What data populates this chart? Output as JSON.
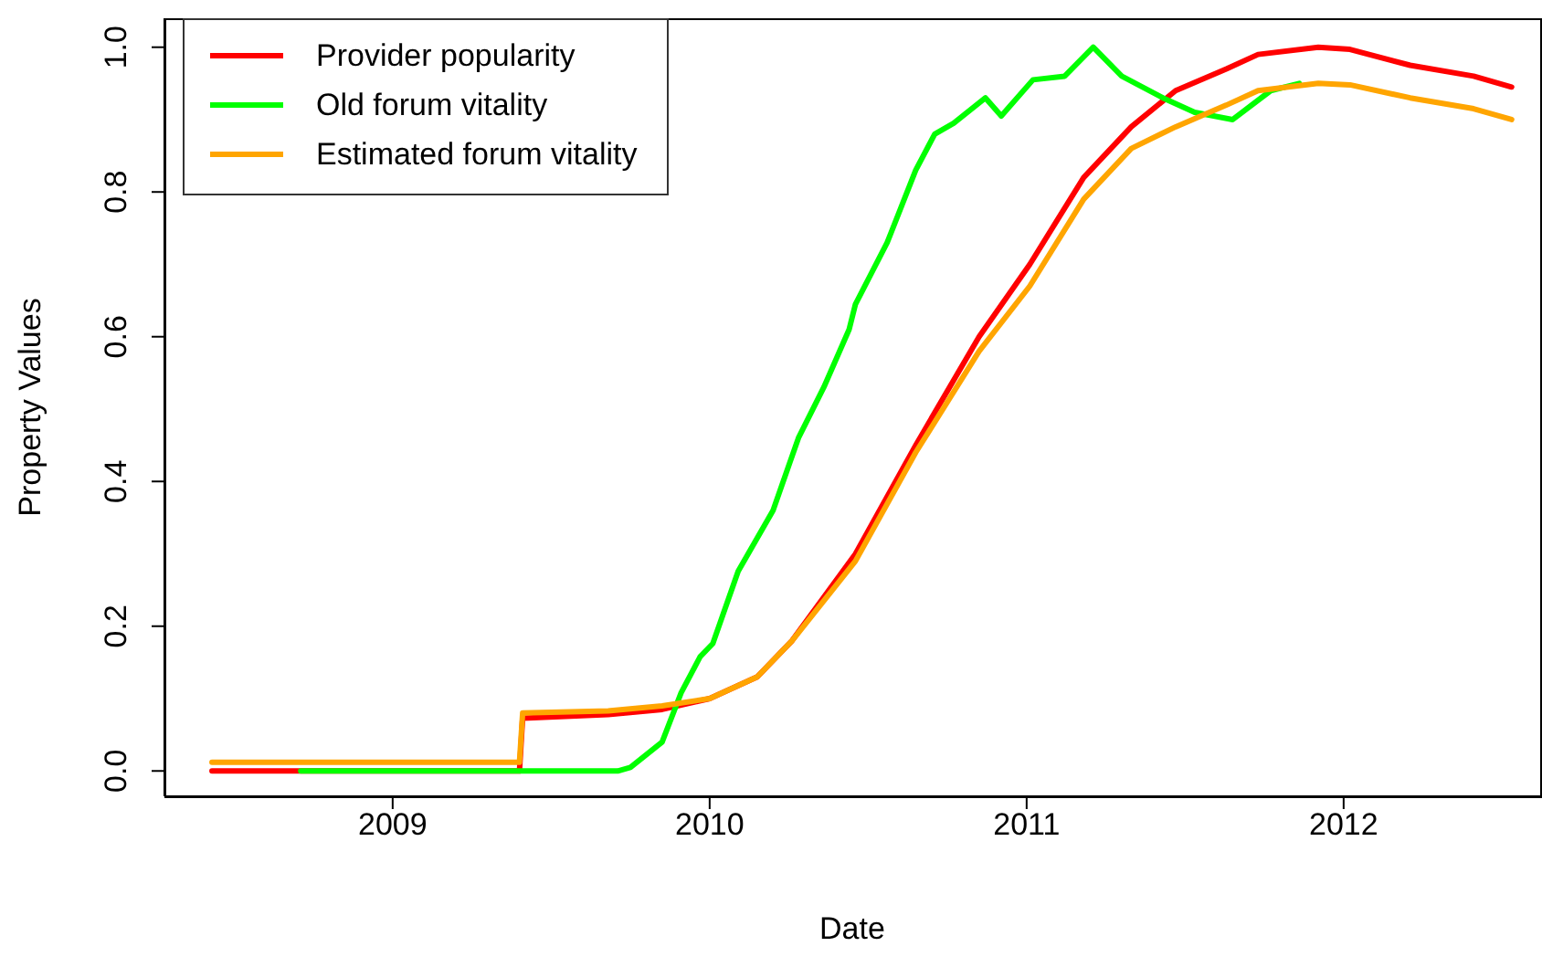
{
  "chart_data": {
    "type": "line",
    "xlabel": "Date",
    "ylabel": "Property Values",
    "xlim": [
      2008.28,
      2012.62
    ],
    "xticks": [
      2009,
      2010,
      2011,
      2012
    ],
    "ylim": [
      -0.035,
      1.04
    ],
    "yticks": [
      {
        "value": 0,
        "label": "0.0"
      },
      {
        "value": 0.2,
        "label": "0.2"
      },
      {
        "value": 0.4,
        "label": "0.4"
      },
      {
        "value": 0.6,
        "label": "0.6"
      },
      {
        "value": 0.8,
        "label": "0.8"
      },
      {
        "value": 1,
        "label": "1.0"
      }
    ],
    "grid": false,
    "legend": "top left",
    "marker": "none",
    "line_style": "solid",
    "series": [
      {
        "name": "Provider popularity",
        "color": "#ff0000",
        "x": [
          2008.43,
          2009.4,
          2009.41,
          2009.68,
          2009.85,
          2010.0,
          2010.15,
          2010.26,
          2010.46,
          2010.65,
          2010.85,
          2011.01,
          2011.18,
          2011.33,
          2011.47,
          2011.63,
          2011.73,
          2011.92,
          2012.02,
          2012.21,
          2012.41,
          2012.53
        ],
        "values": [
          0,
          0,
          0.073,
          0.078,
          0.085,
          0.1,
          0.13,
          0.18,
          0.3,
          0.45,
          0.6,
          0.7,
          0.82,
          0.89,
          0.94,
          0.97,
          0.99,
          1.0,
          0.997,
          0.975,
          0.96,
          0.945
        ]
      },
      {
        "name": "Old forum vitality",
        "color": "#00ff00",
        "x": [
          2008.71,
          2009.71,
          2009.75,
          2009.85,
          2009.91,
          2009.97,
          2010.01,
          2010.09,
          2010.2,
          2010.28,
          2010.36,
          2010.44,
          2010.46,
          2010.56,
          2010.65,
          2010.71,
          2010.77,
          2010.87,
          2010.92,
          2011.02,
          2011.12,
          2011.21,
          2011.3,
          2011.43,
          2011.53,
          2011.65,
          2011.77,
          2011.86
        ],
        "values": [
          0,
          0,
          0.005,
          0.04,
          0.108,
          0.158,
          0.176,
          0.276,
          0.36,
          0.46,
          0.53,
          0.61,
          0.645,
          0.73,
          0.83,
          0.88,
          0.895,
          0.93,
          0.905,
          0.955,
          0.96,
          1.0,
          0.96,
          0.93,
          0.91,
          0.9,
          0.94,
          0.95
        ]
      },
      {
        "name": "Estimated forum vitality",
        "color": "#ffa500",
        "x": [
          2008.43,
          2009.4,
          2009.41,
          2009.68,
          2009.85,
          2010.0,
          2010.15,
          2010.26,
          2010.46,
          2010.65,
          2010.85,
          2011.01,
          2011.18,
          2011.33,
          2011.47,
          2011.63,
          2011.73,
          2011.92,
          2012.02,
          2012.21,
          2012.41,
          2012.53
        ],
        "values": [
          0.012,
          0.012,
          0.08,
          0.083,
          0.09,
          0.1,
          0.13,
          0.18,
          0.29,
          0.44,
          0.58,
          0.67,
          0.79,
          0.86,
          0.89,
          0.92,
          0.94,
          0.95,
          0.948,
          0.93,
          0.915,
          0.9
        ]
      }
    ]
  }
}
